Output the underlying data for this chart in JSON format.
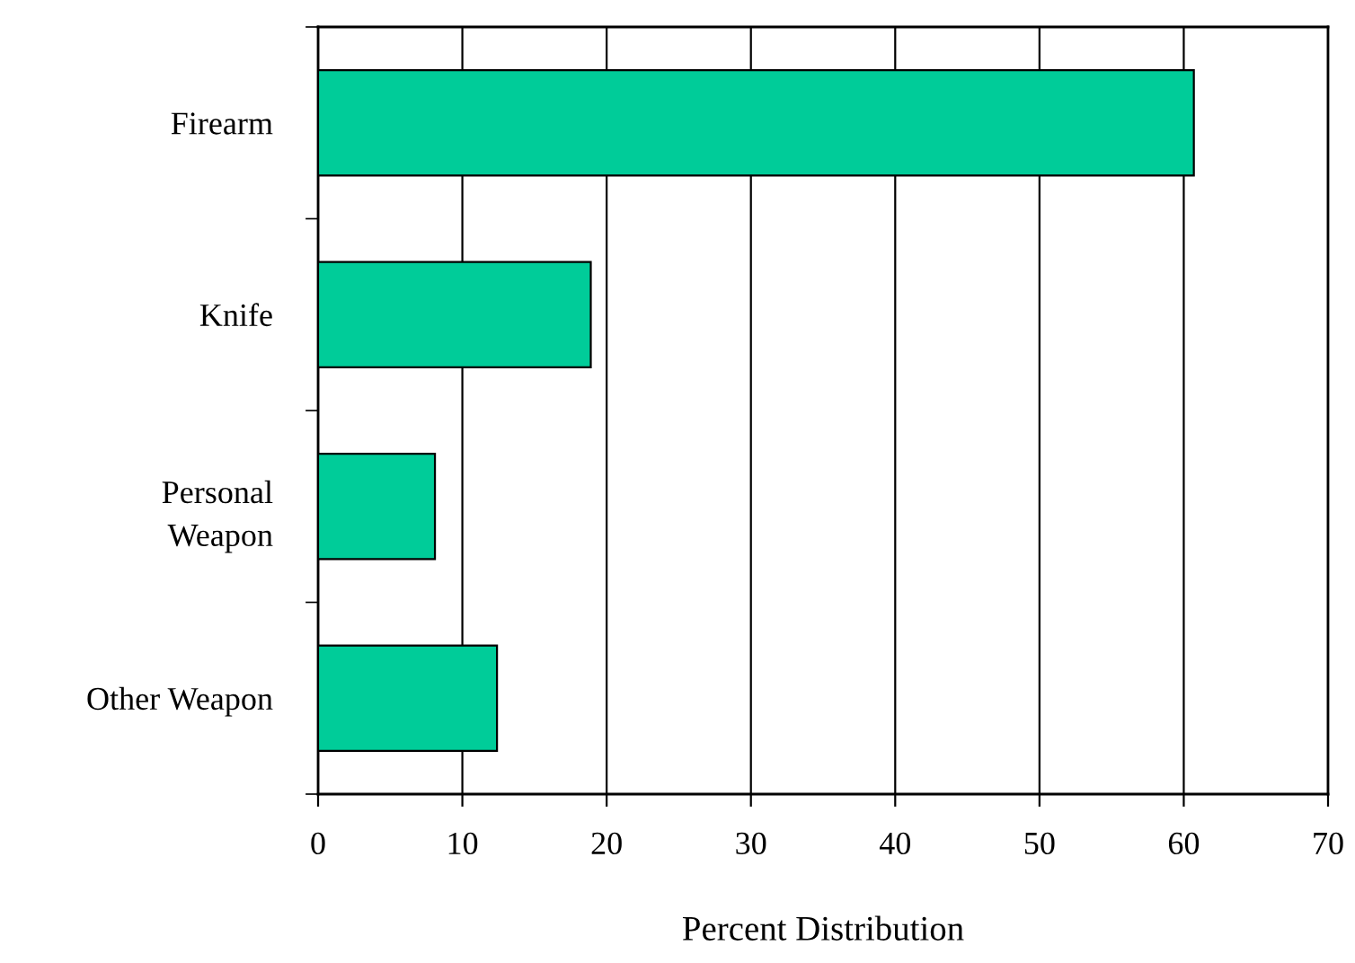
{
  "chart_data": {
    "type": "bar",
    "orientation": "horizontal",
    "xlabel": "Percent Distribution",
    "categories": [
      "Firearm",
      "Knife",
      "Personal\nWeapon",
      "Other Weapon"
    ],
    "values": [
      60.7,
      18.9,
      8.1,
      12.4
    ],
    "color": "#00cc99",
    "xlim": [
      0,
      70
    ],
    "xticks": [
      0,
      10,
      20,
      30,
      40,
      50,
      60,
      70
    ],
    "grid": "x"
  }
}
